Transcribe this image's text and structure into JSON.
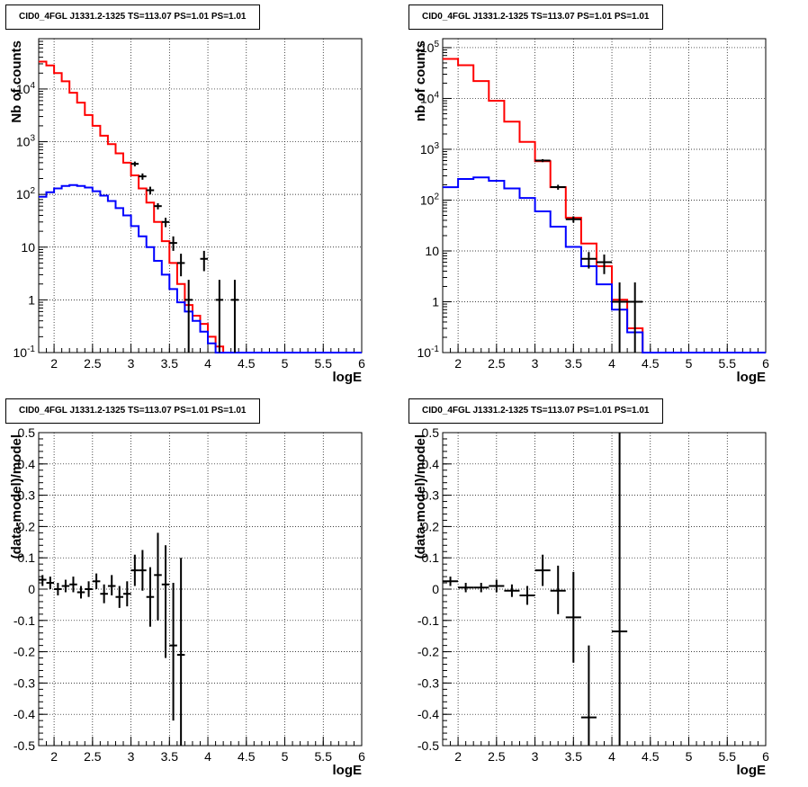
{
  "chart_data": [
    {
      "type": "histogram",
      "title": "CID0_4FGL J1331.2-1325 TS=113.07 PS=1.01 PS=1.01",
      "xlabel": "logE",
      "ylabel": "Nb of counts",
      "xlim": [
        1.8,
        6.0
      ],
      "ylim": [
        0.1,
        90000
      ],
      "yscale": "log",
      "grid": true,
      "x_ticks": [
        "2",
        "2.5",
        "3",
        "3.5",
        "4",
        "4.5",
        "5",
        "5.5",
        "6"
      ],
      "y_ticks": [
        "10^-1",
        "1",
        "10",
        "10^2",
        "10^3",
        "10^4"
      ],
      "bin_edges": [
        1.8,
        1.9,
        2.0,
        2.1,
        2.2,
        2.3,
        2.4,
        2.5,
        2.6,
        2.7,
        2.8,
        2.9,
        3.0,
        3.1,
        3.2,
        3.3,
        3.4,
        3.5,
        3.6,
        3.7,
        3.8,
        3.9,
        4.0,
        4.1,
        4.2,
        4.3,
        4.4,
        4.5,
        4.6,
        4.7,
        4.8,
        4.9,
        5.0,
        5.1,
        5.2,
        5.3,
        5.4,
        5.5,
        5.6,
        5.7,
        5.8,
        5.9,
        6.0
      ],
      "series": [
        {
          "color": "#ff0000",
          "values": [
            33000,
            28000,
            20000,
            14000,
            8500,
            5500,
            3200,
            2000,
            1300,
            900,
            600,
            400,
            230,
            130,
            70,
            30,
            13,
            5,
            2,
            0.8,
            0.5,
            0.35,
            0.2,
            0.13,
            0.1,
            0.1,
            0.1,
            0.1,
            0.1,
            0.1,
            0.1,
            0.1,
            0.1,
            0.1,
            0.1,
            0.1,
            0.1,
            0.1,
            0.1,
            0.1,
            0.1,
            0.1
          ]
        },
        {
          "color": "#0000ff",
          "values": [
            90,
            110,
            130,
            145,
            150,
            145,
            135,
            115,
            95,
            75,
            55,
            40,
            25,
            16,
            10,
            5.5,
            3,
            1.6,
            0.9,
            0.6,
            0.4,
            0.25,
            0.15,
            0.1,
            0.1,
            0.1,
            0.1,
            0.1,
            0.1,
            0.1,
            0.1,
            0.1,
            0.1,
            0.1,
            0.1,
            0.1,
            0.1,
            0.1,
            0.1,
            0.1,
            0.1,
            0.1
          ]
        }
      ],
      "points": [
        {
          "x": 3.05,
          "y": 380,
          "xerr": 0.05,
          "ylo": 340,
          "yhi": 420
        },
        {
          "x": 3.15,
          "y": 220,
          "xerr": 0.05,
          "ylo": 190,
          "yhi": 250
        },
        {
          "x": 3.25,
          "y": 120,
          "xerr": 0.05,
          "ylo": 100,
          "yhi": 140
        },
        {
          "x": 3.35,
          "y": 60,
          "xerr": 0.05,
          "ylo": 52,
          "yhi": 68
        },
        {
          "x": 3.45,
          "y": 30,
          "xerr": 0.05,
          "ylo": 24,
          "yhi": 36
        },
        {
          "x": 3.55,
          "y": 12,
          "xerr": 0.05,
          "ylo": 8.5,
          "yhi": 16
        },
        {
          "x": 3.65,
          "y": 5,
          "xerr": 0.05,
          "ylo": 2.8,
          "yhi": 7.5
        },
        {
          "x": 3.75,
          "y": 1,
          "xerr": 0.05,
          "ylo": 0.1,
          "yhi": 2.4
        },
        {
          "x": 3.95,
          "y": 6,
          "xerr": 0.05,
          "ylo": 3.5,
          "yhi": 8.5
        },
        {
          "x": 4.15,
          "y": 1,
          "xerr": 0.05,
          "ylo": 0.1,
          "yhi": 2.4
        },
        {
          "x": 4.35,
          "y": 1,
          "xerr": 0.05,
          "ylo": 0.1,
          "yhi": 2.4
        }
      ]
    },
    {
      "type": "histogram",
      "title": "CID0_4FGL J1331.2-1325 TS=113.07 PS=1.01 PS=1.01",
      "xlabel": "logE",
      "ylabel": "nb of counts",
      "xlim": [
        1.8,
        6.0
      ],
      "ylim": [
        0.1,
        150000
      ],
      "yscale": "log",
      "grid": true,
      "x_ticks": [
        "2",
        "2.5",
        "3",
        "3.5",
        "4",
        "4.5",
        "5",
        "5.5",
        "6"
      ],
      "y_ticks": [
        "10^-1",
        "1",
        "10",
        "10^2",
        "10^3",
        "10^4",
        "10^5"
      ],
      "bin_edges": [
        1.8,
        2.0,
        2.2,
        2.4,
        2.6,
        2.8,
        3.0,
        3.2,
        3.4,
        3.6,
        3.8,
        4.0,
        4.2,
        4.4,
        4.6,
        4.8,
        5.0,
        5.2,
        5.4,
        5.6,
        5.8,
        6.0
      ],
      "series": [
        {
          "color": "#ff0000",
          "values": [
            60000,
            45000,
            22000,
            9000,
            3500,
            1400,
            580,
            180,
            45,
            14,
            5,
            1.1,
            0.3,
            0.1,
            0.1,
            0.1,
            0.1,
            0.1,
            0.1,
            0.1,
            0.1
          ]
        },
        {
          "color": "#0000ff",
          "values": [
            180,
            260,
            280,
            240,
            170,
            110,
            60,
            30,
            12,
            5,
            2.2,
            0.7,
            0.25,
            0.1,
            0.1,
            0.1,
            0.1,
            0.1,
            0.1,
            0.1,
            0.1
          ]
        }
      ],
      "points": [
        {
          "x": 3.1,
          "y": 600,
          "xerr": 0.1,
          "ylo": 560,
          "yhi": 640
        },
        {
          "x": 3.3,
          "y": 180,
          "xerr": 0.1,
          "ylo": 160,
          "yhi": 200
        },
        {
          "x": 3.5,
          "y": 42,
          "xerr": 0.1,
          "ylo": 36,
          "yhi": 48
        },
        {
          "x": 3.7,
          "y": 7,
          "xerr": 0.1,
          "ylo": 4.5,
          "yhi": 9.5
        },
        {
          "x": 3.9,
          "y": 6,
          "xerr": 0.1,
          "ylo": 3.5,
          "yhi": 8.5
        },
        {
          "x": 4.1,
          "y": 1,
          "xerr": 0.1,
          "ylo": 0.1,
          "yhi": 2.4
        },
        {
          "x": 4.3,
          "y": 1,
          "xerr": 0.1,
          "ylo": 0.1,
          "yhi": 2.4
        }
      ]
    },
    {
      "type": "scatter",
      "title": "CID0_4FGL J1331.2-1325 TS=113.07 PS=1.01 PS=1.01",
      "xlabel": "logE",
      "ylabel": "(data-model)/model",
      "xlim": [
        1.8,
        6.0
      ],
      "ylim": [
        -0.5,
        0.5
      ],
      "grid": true,
      "x_ticks": [
        "2",
        "2.5",
        "3",
        "3.5",
        "4",
        "4.5",
        "5",
        "5.5",
        "6"
      ],
      "y_ticks": [
        "-0.5",
        "-0.4",
        "-0.3",
        "-0.2",
        "-0.1",
        "0",
        "0.1",
        "0.2",
        "0.3",
        "0.4",
        "0.5"
      ],
      "points": [
        {
          "x": 1.85,
          "y": 0.03,
          "xerr": 0.05,
          "ylo": 0.01,
          "yhi": 0.045
        },
        {
          "x": 1.95,
          "y": 0.02,
          "xerr": 0.05,
          "ylo": 0.0,
          "yhi": 0.04
        },
        {
          "x": 2.05,
          "y": 0.0,
          "xerr": 0.05,
          "ylo": -0.02,
          "yhi": 0.02
        },
        {
          "x": 2.15,
          "y": 0.01,
          "xerr": 0.05,
          "ylo": -0.01,
          "yhi": 0.03
        },
        {
          "x": 2.25,
          "y": 0.015,
          "xerr": 0.05,
          "ylo": -0.01,
          "yhi": 0.04
        },
        {
          "x": 2.35,
          "y": -0.01,
          "xerr": 0.05,
          "ylo": -0.03,
          "yhi": 0.01
        },
        {
          "x": 2.45,
          "y": 0.0,
          "xerr": 0.05,
          "ylo": -0.025,
          "yhi": 0.025
        },
        {
          "x": 2.55,
          "y": 0.025,
          "xerr": 0.05,
          "ylo": 0.0,
          "yhi": 0.05
        },
        {
          "x": 2.65,
          "y": -0.015,
          "xerr": 0.05,
          "ylo": -0.045,
          "yhi": 0.015
        },
        {
          "x": 2.75,
          "y": 0.01,
          "xerr": 0.05,
          "ylo": -0.02,
          "yhi": 0.045
        },
        {
          "x": 2.85,
          "y": -0.025,
          "xerr": 0.05,
          "ylo": -0.06,
          "yhi": 0.01
        },
        {
          "x": 2.95,
          "y": -0.015,
          "xerr": 0.05,
          "ylo": -0.055,
          "yhi": 0.025
        },
        {
          "x": 3.05,
          "y": 0.06,
          "xerr": 0.05,
          "ylo": 0.01,
          "yhi": 0.11
        },
        {
          "x": 3.15,
          "y": 0.06,
          "xerr": 0.05,
          "ylo": -0.005,
          "yhi": 0.125
        },
        {
          "x": 3.25,
          "y": -0.025,
          "xerr": 0.05,
          "ylo": -0.12,
          "yhi": 0.07
        },
        {
          "x": 3.35,
          "y": 0.045,
          "xerr": 0.05,
          "ylo": -0.1,
          "yhi": 0.18
        },
        {
          "x": 3.45,
          "y": 0.015,
          "xerr": 0.05,
          "ylo": -0.22,
          "yhi": 0.14
        },
        {
          "x": 3.55,
          "y": -0.18,
          "xerr": 0.05,
          "ylo": -0.42,
          "yhi": 0.02
        },
        {
          "x": 3.65,
          "y": -0.21,
          "xerr": 0.05,
          "ylo": -0.5,
          "yhi": 0.1
        }
      ]
    },
    {
      "type": "scatter",
      "title": "CID0_4FGL J1331.2-1325 TS=113.07 PS=1.01 PS=1.01",
      "xlabel": "logE",
      "ylabel": "(data-model)/model",
      "xlim": [
        1.8,
        6.0
      ],
      "ylim": [
        -0.5,
        0.5
      ],
      "grid": true,
      "x_ticks": [
        "2",
        "2.5",
        "3",
        "3.5",
        "4",
        "4.5",
        "5",
        "5.5",
        "6"
      ],
      "y_ticks": [
        "-0.5",
        "-0.4",
        "-0.3",
        "-0.2",
        "-0.1",
        "0",
        "0.1",
        "0.2",
        "0.3",
        "0.4",
        "0.5"
      ],
      "points": [
        {
          "x": 1.9,
          "y": 0.025,
          "xerr": 0.1,
          "ylo": 0.01,
          "yhi": 0.04
        },
        {
          "x": 2.1,
          "y": 0.005,
          "xerr": 0.1,
          "ylo": -0.01,
          "yhi": 0.02
        },
        {
          "x": 2.3,
          "y": 0.005,
          "xerr": 0.1,
          "ylo": -0.01,
          "yhi": 0.02
        },
        {
          "x": 2.5,
          "y": 0.01,
          "xerr": 0.1,
          "ylo": -0.01,
          "yhi": 0.03
        },
        {
          "x": 2.7,
          "y": -0.005,
          "xerr": 0.1,
          "ylo": -0.025,
          "yhi": 0.015
        },
        {
          "x": 2.9,
          "y": -0.02,
          "xerr": 0.1,
          "ylo": -0.05,
          "yhi": 0.01
        },
        {
          "x": 3.1,
          "y": 0.06,
          "xerr": 0.1,
          "ylo": 0.01,
          "yhi": 0.11
        },
        {
          "x": 3.3,
          "y": -0.005,
          "xerr": 0.1,
          "ylo": -0.08,
          "yhi": 0.075
        },
        {
          "x": 3.5,
          "y": -0.09,
          "xerr": 0.1,
          "ylo": -0.235,
          "yhi": 0.055
        },
        {
          "x": 3.7,
          "y": -0.41,
          "xerr": 0.1,
          "ylo": -0.5,
          "yhi": -0.18
        },
        {
          "x": 4.1,
          "y": -0.135,
          "xerr": 0.1,
          "ylo": -0.5,
          "yhi": 0.5
        }
      ]
    }
  ]
}
